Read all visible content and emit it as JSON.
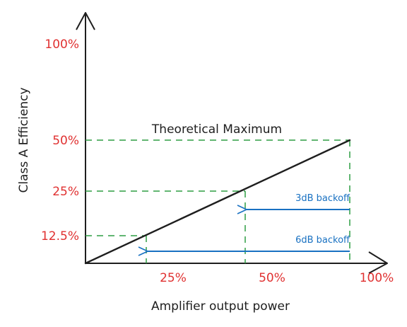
{
  "colors": {
    "ink": "#1e1e1e",
    "tick_label": "#e03131",
    "guide": "#2f9e44",
    "annotation": "#1971c2"
  },
  "chart_data": {
    "type": "line",
    "title": "Theoretical Maximum",
    "xlabel": "Amplifier output power",
    "ylabel": "Class A Efficiency",
    "x_ticks": [
      "25%",
      "50%",
      "100%"
    ],
    "y_ticks": [
      "100%",
      "50%",
      "25%",
      "12.5%"
    ],
    "xlim": [
      0,
      100
    ],
    "ylim": [
      0,
      100
    ],
    "x_scale": "linear",
    "y_scale": "linear",
    "grid": false,
    "series": [
      {
        "x": [
          0,
          100
        ],
        "y": [
          0,
          50
        ]
      }
    ],
    "guides": [
      {
        "x": 25,
        "y": 12.5
      },
      {
        "x": 50,
        "y": 25
      },
      {
        "x": 100,
        "y": 50
      }
    ],
    "annotations": [
      {
        "text": "3dB backoff",
        "from_x": 100,
        "to_x": 50
      },
      {
        "text": "6dB backoff",
        "from_x": 100,
        "to_x": 25
      }
    ]
  }
}
